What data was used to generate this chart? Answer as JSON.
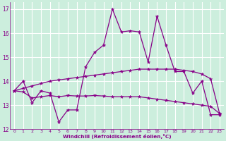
{
  "xlabel": "Windchill (Refroidissement éolien,°C)",
  "background_color": "#cceedd",
  "line_color": "#880088",
  "grid_color": "#ffffff",
  "xlim": [
    -0.5,
    23.5
  ],
  "ylim": [
    12.0,
    17.3
  ],
  "yticks": [
    12,
    13,
    14,
    15,
    16,
    17
  ],
  "xticks": [
    0,
    1,
    2,
    3,
    4,
    5,
    6,
    7,
    8,
    9,
    10,
    11,
    12,
    13,
    14,
    15,
    16,
    17,
    18,
    19,
    20,
    21,
    22,
    23
  ],
  "line1": [
    13.6,
    14.0,
    13.1,
    13.6,
    13.5,
    12.3,
    12.8,
    12.8,
    14.6,
    15.2,
    15.5,
    17.0,
    16.05,
    16.1,
    16.05,
    14.8,
    16.7,
    15.5,
    14.4,
    14.4,
    13.5,
    14.0,
    12.6,
    12.6
  ],
  "line2": [
    13.6,
    13.7,
    13.8,
    13.9,
    14.0,
    14.05,
    14.1,
    14.15,
    14.2,
    14.25,
    14.3,
    14.35,
    14.4,
    14.45,
    14.5,
    14.5,
    14.5,
    14.5,
    14.5,
    14.45,
    14.4,
    14.3,
    14.1,
    12.65
  ],
  "line3": [
    13.6,
    13.55,
    13.3,
    13.35,
    13.4,
    13.35,
    13.4,
    13.38,
    13.38,
    13.4,
    13.38,
    13.35,
    13.35,
    13.35,
    13.35,
    13.3,
    13.25,
    13.2,
    13.15,
    13.1,
    13.05,
    13.0,
    12.95,
    12.65
  ]
}
